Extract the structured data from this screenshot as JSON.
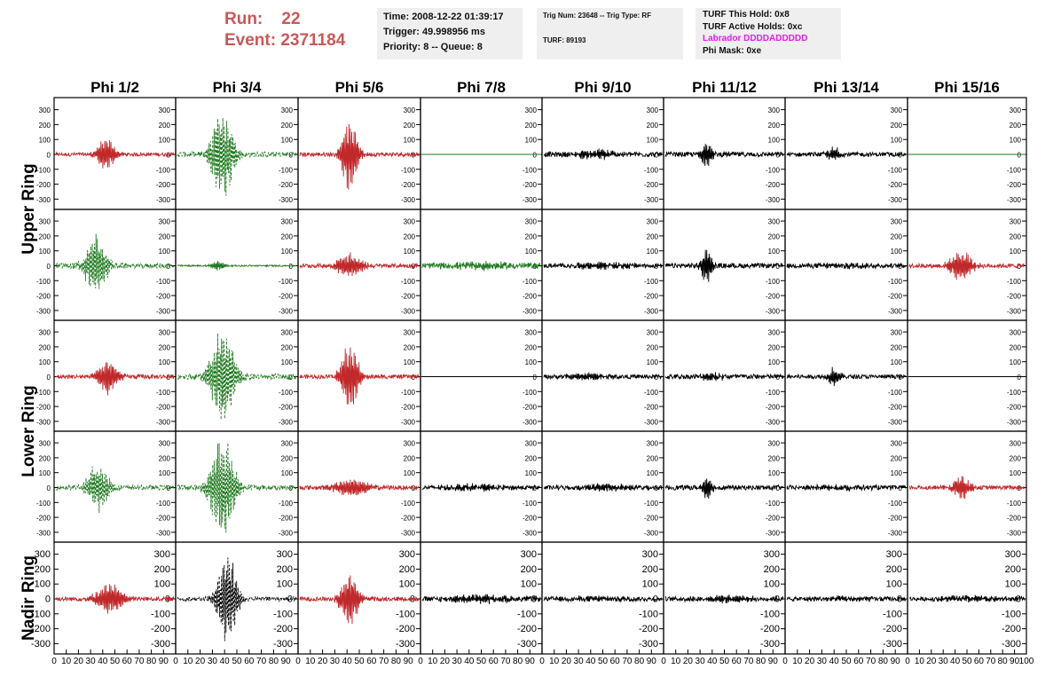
{
  "header": {
    "run_label": "Run:",
    "run_value": "22",
    "event_label": "Event:",
    "event_value": "2371184"
  },
  "info_panel_1": {
    "time": "Time: 2008-12-22 01:39:17",
    "trigger": "Trigger: 49.998956 ms",
    "priority": "Priority: 8 -- Queue: 8"
  },
  "info_panel_2": {
    "trig": "Trig Num: 23648 -- Trig Type: RF",
    "turf": "TURF: 89193"
  },
  "info_panel_3": {
    "this_hold": "TURF This Hold: 0x8",
    "active_holds": "TURF Active Holds: 0xc",
    "labrador": "Labrador DDDDADDDDD",
    "phi_mask": "Phi Mask: 0xe"
  },
  "colors": {
    "red": "#c0282a",
    "green": "#1f7a1f",
    "black": "#000000",
    "header_red": "#c95858",
    "labrador_magenta": "#e020e0",
    "panel_bg": "#efefef"
  },
  "chart_data": {
    "type": "line",
    "columns": [
      "Phi 1/2",
      "Phi 3/4",
      "Phi 5/6",
      "Phi 7/8",
      "Phi 9/10",
      "Phi 11/12",
      "Phi 13/14",
      "Phi 15/16"
    ],
    "row_labels": [
      {
        "text": "Upper Ring",
        "rows": [
          0,
          1
        ]
      },
      {
        "text": "Lower Ring",
        "rows": [
          2,
          3
        ]
      },
      {
        "text": "Nadir Ring",
        "rows": [
          4,
          4
        ]
      }
    ],
    "xlim": [
      0,
      100
    ],
    "ylim": [
      -350,
      350
    ],
    "y_ticks": [
      300,
      200,
      100,
      0,
      -100,
      -200,
      -300
    ],
    "x_ticks": [
      0,
      10,
      20,
      30,
      40,
      50,
      60,
      70,
      80,
      90,
      100
    ],
    "grid": false,
    "rows": [
      [
        {
          "color": "red",
          "style": "solid",
          "center": 42,
          "amp": 120,
          "width": 8,
          "noise": 12
        },
        {
          "color": "green",
          "style": "dashed",
          "center": 38,
          "amp": 320,
          "width": 10,
          "noise": 18
        },
        {
          "color": "red",
          "style": "solid",
          "center": 42,
          "amp": 280,
          "width": 7,
          "noise": 14
        },
        {
          "color": "green",
          "style": "flat",
          "center": 0,
          "amp": 0,
          "width": 1,
          "noise": 0
        },
        {
          "color": "black",
          "style": "solid",
          "center": 45,
          "amp": 30,
          "width": 20,
          "noise": 16
        },
        {
          "color": "black",
          "style": "solid",
          "center": 35,
          "amp": 90,
          "width": 5,
          "noise": 16
        },
        {
          "color": "black",
          "style": "solid",
          "center": 40,
          "amp": 50,
          "width": 6,
          "noise": 14
        },
        {
          "color": "green",
          "style": "flat",
          "center": 0,
          "amp": 0,
          "width": 1,
          "noise": 0
        }
      ],
      [
        {
          "color": "green",
          "style": "dashed",
          "center": 34,
          "amp": 210,
          "width": 10,
          "noise": 18
        },
        {
          "color": "green",
          "style": "solid",
          "center": 34,
          "amp": 40,
          "width": 6,
          "noise": 5
        },
        {
          "color": "red",
          "style": "solid",
          "center": 42,
          "amp": 90,
          "width": 12,
          "noise": 14
        },
        {
          "color": "green",
          "style": "solid",
          "center": 50,
          "amp": 20,
          "width": 30,
          "noise": 18
        },
        {
          "color": "black",
          "style": "solid",
          "center": 50,
          "amp": 20,
          "width": 30,
          "noise": 14
        },
        {
          "color": "black",
          "style": "solid",
          "center": 35,
          "amp": 130,
          "width": 5,
          "noise": 16
        },
        {
          "color": "black",
          "style": "solid",
          "center": 50,
          "amp": 15,
          "width": 30,
          "noise": 14
        },
        {
          "color": "red",
          "style": "solid",
          "center": 45,
          "amp": 110,
          "width": 10,
          "noise": 14
        }
      ],
      [
        {
          "color": "red",
          "style": "solid",
          "center": 44,
          "amp": 130,
          "width": 9,
          "noise": 14
        },
        {
          "color": "green",
          "style": "dashed",
          "center": 38,
          "amp": 350,
          "width": 11,
          "noise": 18
        },
        {
          "color": "red",
          "style": "solid",
          "center": 42,
          "amp": 250,
          "width": 8,
          "noise": 14
        },
        {
          "color": "black",
          "style": "flat",
          "center": 0,
          "amp": 0,
          "width": 1,
          "noise": 0
        },
        {
          "color": "black",
          "style": "solid",
          "center": 40,
          "amp": 20,
          "width": 20,
          "noise": 14
        },
        {
          "color": "black",
          "style": "solid",
          "center": 40,
          "amp": 30,
          "width": 10,
          "noise": 16
        },
        {
          "color": "black",
          "style": "solid",
          "center": 40,
          "amp": 70,
          "width": 5,
          "noise": 14
        },
        {
          "color": "black",
          "style": "flat",
          "center": 0,
          "amp": 0,
          "width": 1,
          "noise": 0
        }
      ],
      [
        {
          "color": "green",
          "style": "dashed",
          "center": 36,
          "amp": 180,
          "width": 10,
          "noise": 16
        },
        {
          "color": "green",
          "style": "dashed",
          "center": 38,
          "amp": 360,
          "width": 11,
          "noise": 18
        },
        {
          "color": "red",
          "style": "solid",
          "center": 45,
          "amp": 70,
          "width": 15,
          "noise": 14
        },
        {
          "color": "black",
          "style": "solid",
          "center": 45,
          "amp": 20,
          "width": 30,
          "noise": 14
        },
        {
          "color": "black",
          "style": "solid",
          "center": 50,
          "amp": 20,
          "width": 30,
          "noise": 14
        },
        {
          "color": "black",
          "style": "solid",
          "center": 35,
          "amp": 80,
          "width": 5,
          "noise": 16
        },
        {
          "color": "black",
          "style": "solid",
          "center": 45,
          "amp": 15,
          "width": 30,
          "noise": 14
        },
        {
          "color": "red",
          "style": "solid",
          "center": 45,
          "amp": 90,
          "width": 8,
          "noise": 14
        }
      ],
      [
        {
          "color": "red",
          "style": "solid",
          "center": 46,
          "amp": 120,
          "width": 12,
          "noise": 14
        },
        {
          "color": "black",
          "style": "dashed",
          "center": 42,
          "amp": 330,
          "width": 9,
          "noise": 14
        },
        {
          "color": "red",
          "style": "solid",
          "center": 42,
          "amp": 200,
          "width": 8,
          "noise": 14
        },
        {
          "color": "black",
          "style": "solid",
          "center": 50,
          "amp": 30,
          "width": 25,
          "noise": 16
        },
        {
          "color": "black",
          "style": "solid",
          "center": 50,
          "amp": 15,
          "width": 30,
          "noise": 14
        },
        {
          "color": "black",
          "style": "solid",
          "center": 50,
          "amp": 20,
          "width": 30,
          "noise": 14
        },
        {
          "color": "black",
          "style": "solid",
          "center": 50,
          "amp": 15,
          "width": 30,
          "noise": 14
        },
        {
          "color": "black",
          "style": "solid",
          "center": 50,
          "amp": 20,
          "width": 30,
          "noise": 14
        }
      ]
    ]
  }
}
